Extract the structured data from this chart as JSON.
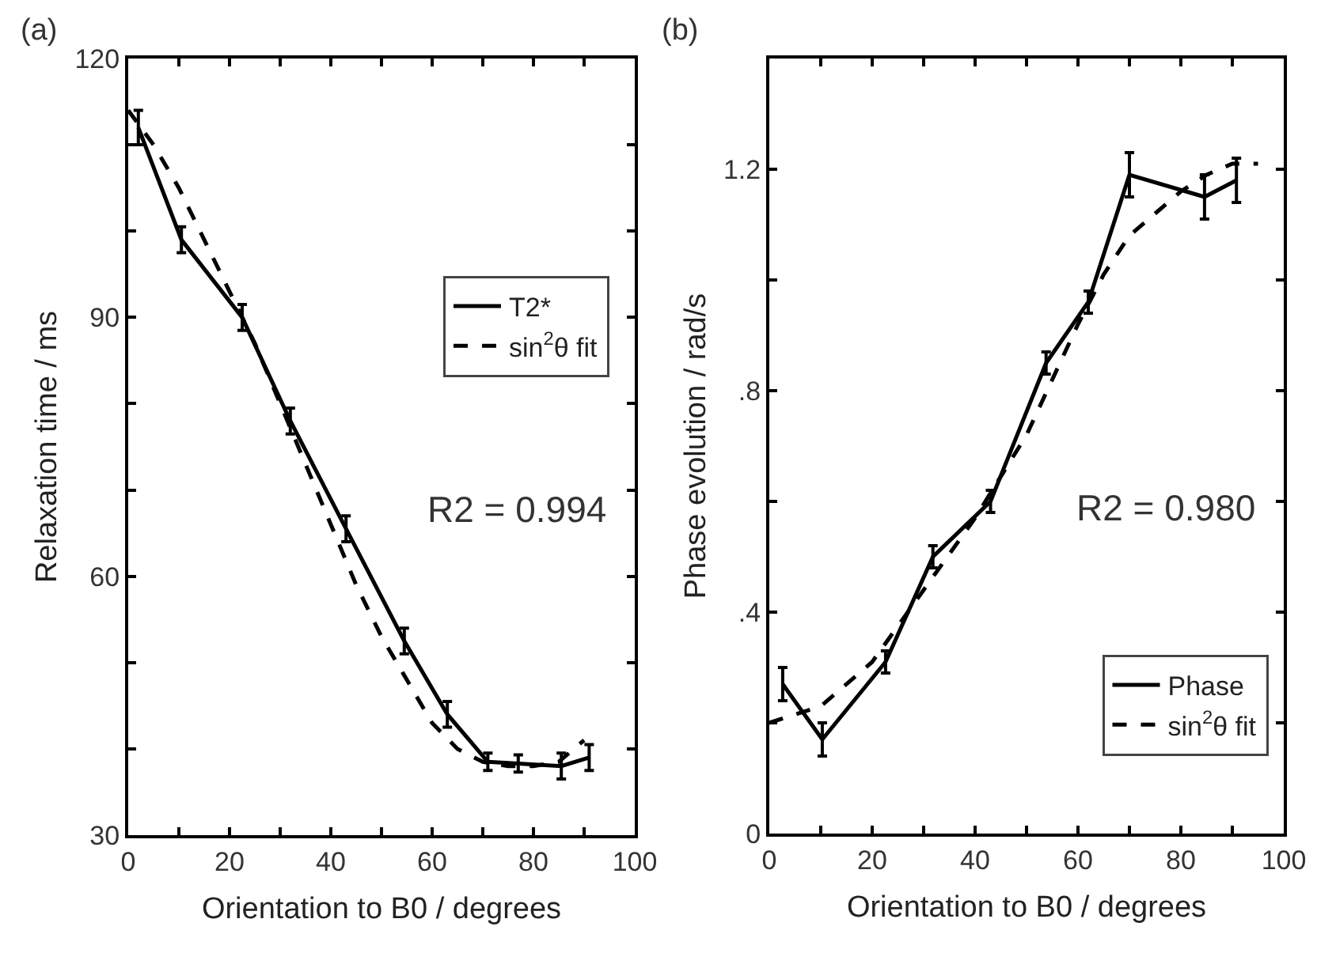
{
  "chart_data": [
    {
      "type": "line",
      "xlabel": "Orientation to B0 / degrees",
      "ylabel": "Relaxation time / ms",
      "annotations": [
        "(a)",
        "R2 = 0.994"
      ],
      "xlim": [
        0,
        100
      ],
      "xticks": [
        0,
        {
          "value": 10,
          "label": null
        },
        20,
        {
          "value": 30,
          "label": null
        },
        40,
        {
          "value": 50,
          "label": null
        },
        60,
        {
          "value": 70,
          "label": null
        },
        80,
        {
          "value": 90,
          "label": null
        },
        100
      ],
      "ylim": [
        30,
        120
      ],
      "yticks": [
        30,
        {
          "value": 40,
          "label": null
        },
        {
          "value": 50,
          "label": null
        },
        60,
        {
          "value": 70,
          "label": null
        },
        {
          "value": 80,
          "label": null
        },
        90,
        {
          "value": 100,
          "label": null
        },
        {
          "value": 110,
          "label": null
        },
        120
      ],
      "legend": "right",
      "marker": "none",
      "series": [
        {
          "name": "T2*",
          "color": "#000000",
          "line_style": "solid",
          "x": [
            2,
            10.5,
            22.5,
            32,
            43,
            54.5,
            63,
            71,
            77,
            85.5,
            91
          ],
          "values": [
            112,
            99,
            90,
            78,
            65.5,
            52.5,
            44,
            38.5,
            38.3,
            38,
            39
          ],
          "errors": [
            2,
            1.5,
            1.5,
            1.5,
            1.5,
            1.5,
            1.5,
            1,
            1,
            1.5,
            1.5
          ]
        },
        {
          "name": "sin$^{2}$θ fit",
          "color": "#000000",
          "line_style": "dashed",
          "x": [
            0,
            5,
            10,
            15,
            20,
            25,
            30,
            35,
            40,
            45,
            50,
            55,
            60,
            65,
            70,
            75,
            80,
            85,
            90
          ],
          "values": [
            114,
            110,
            105,
            99,
            93,
            87,
            80,
            73,
            66,
            59,
            53,
            48,
            43,
            40,
            38.5,
            38,
            38,
            38.5,
            41
          ]
        }
      ]
    },
    {
      "type": "line",
      "xlabel": "Orientation to B0 / degrees",
      "ylabel": "Phase evolution / rad/s",
      "annotations": [
        "(b)",
        "R2 = 0.980"
      ],
      "xlim": [
        0,
        100
      ],
      "xticks": [
        0,
        {
          "value": 10,
          "label": null
        },
        20,
        {
          "value": 30,
          "label": null
        },
        40,
        {
          "value": 50,
          "label": null
        },
        60,
        {
          "value": 70,
          "label": null
        },
        80,
        {
          "value": 90,
          "label": null
        },
        100
      ],
      "ylim": [
        0,
        1.4
      ],
      "yticks": [
        0,
        {
          "value": 0.2,
          "label": null
        },
        {
          "value": 0.4,
          "label": ".4"
        },
        {
          "value": 0.6,
          "label": null
        },
        {
          "value": 0.8,
          "label": ".8"
        },
        {
          "value": 1.0,
          "label": null
        },
        1.2
      ],
      "legend": "bottom right",
      "marker": "none",
      "series": [
        {
          "name": "Phase",
          "color": "#000000",
          "line_style": "solid",
          "x": [
            2.6,
            10.3,
            22.6,
            31.8,
            43,
            53.8,
            62,
            70,
            84.6,
            90.8
          ],
          "values": [
            0.27,
            0.17,
            0.31,
            0.5,
            0.6,
            0.85,
            0.96,
            1.19,
            1.15,
            1.18
          ],
          "errors": [
            0.03,
            0.03,
            0.02,
            0.02,
            0.02,
            0.02,
            0.02,
            0.04,
            0.04,
            0.04
          ]
        },
        {
          "name": "sin$^{2}$θ fit",
          "color": "#000000",
          "line_style": "dashed",
          "x": [
            0,
            10,
            20,
            30,
            40,
            50,
            60,
            65,
            70,
            75,
            80,
            85,
            90,
            95
          ],
          "values": [
            0.2,
            0.23,
            0.31,
            0.44,
            0.57,
            0.72,
            0.92,
            1.01,
            1.08,
            1.12,
            1.16,
            1.19,
            1.21,
            1.21
          ]
        }
      ]
    }
  ]
}
